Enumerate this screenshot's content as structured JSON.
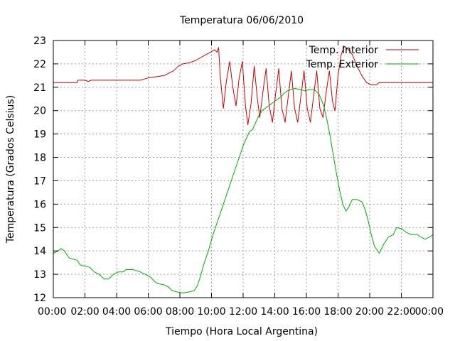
{
  "colors": {
    "interior": "#cc0000",
    "exterior": "#00aa00",
    "grid": "#a0a0a0",
    "frame": "#000000"
  },
  "chart_data": {
    "type": "line",
    "title": "Temperatura 06/06/2010",
    "xlabel": "Tiempo (Hora Local Argentina)",
    "ylabel": "Temperatura (Grados Celsius)",
    "xlim": [
      0,
      24
    ],
    "ylim": [
      12,
      23
    ],
    "grid": true,
    "legend_position": "top-right",
    "x_ticks": [
      {
        "value": 0,
        "label": "00:00"
      },
      {
        "value": 2,
        "label": "02:00"
      },
      {
        "value": 4,
        "label": "04:00"
      },
      {
        "value": 6,
        "label": "06:00"
      },
      {
        "value": 8,
        "label": "08:00"
      },
      {
        "value": 10,
        "label": "10:00"
      },
      {
        "value": 12,
        "label": "12:00"
      },
      {
        "value": 14,
        "label": "14:00"
      },
      {
        "value": 16,
        "label": "16:00"
      },
      {
        "value": 18,
        "label": "18:00"
      },
      {
        "value": 20,
        "label": "20:00"
      },
      {
        "value": 22,
        "label": "22:00"
      },
      {
        "value": 24,
        "label": "00:00"
      }
    ],
    "y_ticks": [
      {
        "value": 12,
        "label": "12"
      },
      {
        "value": 13,
        "label": "13"
      },
      {
        "value": 14,
        "label": "14"
      },
      {
        "value": 15,
        "label": "15"
      },
      {
        "value": 16,
        "label": "16"
      },
      {
        "value": 17,
        "label": "17"
      },
      {
        "value": 18,
        "label": "18"
      },
      {
        "value": 19,
        "label": "19"
      },
      {
        "value": 20,
        "label": "20"
      },
      {
        "value": 21,
        "label": "21"
      },
      {
        "value": 22,
        "label": "22"
      },
      {
        "value": 23,
        "label": "23"
      }
    ],
    "series": [
      {
        "name": "Temp. Interior",
        "color_key": "interior",
        "points": [
          [
            0,
            21.2
          ],
          [
            1.5,
            21.2
          ],
          [
            1.55,
            21.3
          ],
          [
            2.0,
            21.3
          ],
          [
            2.2,
            21.25
          ],
          [
            2.4,
            21.3
          ],
          [
            3.0,
            21.3
          ],
          [
            3.5,
            21.3
          ],
          [
            4.0,
            21.3
          ],
          [
            4.5,
            21.3
          ],
          [
            5.0,
            21.3
          ],
          [
            5.5,
            21.3
          ],
          [
            6.0,
            21.4
          ],
          [
            6.5,
            21.45
          ],
          [
            7.0,
            21.5
          ],
          [
            7.3,
            21.6
          ],
          [
            7.6,
            21.7
          ],
          [
            7.9,
            21.9
          ],
          [
            8.2,
            22.0
          ],
          [
            8.6,
            22.05
          ],
          [
            9.0,
            22.15
          ],
          [
            9.4,
            22.3
          ],
          [
            9.8,
            22.45
          ],
          [
            10.2,
            22.6
          ],
          [
            10.35,
            22.5
          ],
          [
            10.45,
            22.7
          ],
          [
            10.55,
            21.5
          ],
          [
            10.75,
            20.1
          ],
          [
            10.95,
            21.3
          ],
          [
            11.15,
            22.1
          ],
          [
            11.35,
            21.0
          ],
          [
            11.55,
            20.2
          ],
          [
            11.75,
            21.4
          ],
          [
            11.95,
            22.1
          ],
          [
            12.15,
            20.2
          ],
          [
            12.3,
            19.4
          ],
          [
            12.5,
            20.3
          ],
          [
            12.7,
            21.9
          ],
          [
            12.9,
            20.5
          ],
          [
            13.05,
            19.7
          ],
          [
            13.25,
            20.8
          ],
          [
            13.45,
            21.8
          ],
          [
            13.65,
            20.2
          ],
          [
            13.85,
            19.5
          ],
          [
            14.05,
            20.7
          ],
          [
            14.25,
            21.8
          ],
          [
            14.45,
            20.1
          ],
          [
            14.65,
            19.5
          ],
          [
            14.85,
            20.6
          ],
          [
            15.05,
            21.7
          ],
          [
            15.25,
            20.1
          ],
          [
            15.45,
            19.5
          ],
          [
            15.65,
            20.6
          ],
          [
            15.85,
            21.7
          ],
          [
            16.05,
            20.1
          ],
          [
            16.25,
            19.5
          ],
          [
            16.45,
            20.6
          ],
          [
            16.65,
            21.7
          ],
          [
            16.85,
            20.1
          ],
          [
            17.05,
            19.7
          ],
          [
            17.25,
            20.8
          ],
          [
            17.45,
            21.7
          ],
          [
            17.65,
            20.4
          ],
          [
            17.8,
            20.0
          ],
          [
            18.0,
            21.5
          ],
          [
            18.2,
            22.4
          ],
          [
            18.4,
            22.75
          ],
          [
            18.6,
            22.65
          ],
          [
            18.9,
            22.4
          ],
          [
            19.2,
            21.9
          ],
          [
            19.5,
            21.5
          ],
          [
            19.8,
            21.2
          ],
          [
            20.1,
            21.1
          ],
          [
            20.4,
            21.1
          ],
          [
            20.6,
            21.2
          ],
          [
            24,
            21.2
          ]
        ]
      },
      {
        "name": "Temp. Exterior",
        "color_key": "exterior",
        "points": [
          [
            0,
            13.9
          ],
          [
            0.3,
            14.0
          ],
          [
            0.5,
            14.1
          ],
          [
            0.7,
            14.0
          ],
          [
            0.9,
            13.8
          ],
          [
            1.0,
            13.7
          ],
          [
            1.5,
            13.6
          ],
          [
            1.7,
            13.4
          ],
          [
            2.0,
            13.35
          ],
          [
            2.3,
            13.3
          ],
          [
            2.6,
            13.1
          ],
          [
            2.9,
            13.0
          ],
          [
            3.2,
            12.8
          ],
          [
            3.5,
            12.8
          ],
          [
            3.8,
            13.0
          ],
          [
            4.1,
            13.1
          ],
          [
            4.4,
            13.1
          ],
          [
            4.6,
            13.2
          ],
          [
            5.0,
            13.2
          ],
          [
            5.3,
            13.15
          ],
          [
            5.5,
            13.1
          ],
          [
            5.8,
            13.0
          ],
          [
            6.1,
            12.9
          ],
          [
            6.4,
            12.7
          ],
          [
            6.6,
            12.6
          ],
          [
            7.0,
            12.55
          ],
          [
            7.3,
            12.45
          ],
          [
            7.5,
            12.3
          ],
          [
            7.8,
            12.25
          ],
          [
            8.2,
            12.2
          ],
          [
            8.6,
            12.25
          ],
          [
            8.9,
            12.3
          ],
          [
            9.1,
            12.5
          ],
          [
            9.3,
            12.9
          ],
          [
            9.5,
            13.4
          ],
          [
            9.8,
            14.0
          ],
          [
            10.1,
            14.7
          ],
          [
            10.4,
            15.3
          ],
          [
            10.7,
            15.9
          ],
          [
            11.0,
            16.5
          ],
          [
            11.2,
            16.9
          ],
          [
            11.4,
            17.3
          ],
          [
            11.6,
            17.7
          ],
          [
            11.8,
            18.1
          ],
          [
            12.0,
            18.5
          ],
          [
            12.2,
            18.8
          ],
          [
            12.4,
            19.1
          ],
          [
            12.6,
            19.2
          ],
          [
            12.8,
            19.5
          ],
          [
            13.0,
            19.8
          ],
          [
            13.2,
            20.0
          ],
          [
            13.4,
            20.1
          ],
          [
            13.6,
            20.2
          ],
          [
            13.8,
            20.3
          ],
          [
            14.0,
            20.4
          ],
          [
            14.2,
            20.5
          ],
          [
            14.4,
            20.6
          ],
          [
            14.6,
            20.75
          ],
          [
            14.8,
            20.85
          ],
          [
            15.0,
            20.9
          ],
          [
            15.3,
            20.95
          ],
          [
            15.6,
            20.9
          ],
          [
            15.9,
            20.85
          ],
          [
            16.2,
            20.9
          ],
          [
            16.5,
            20.9
          ],
          [
            16.8,
            20.7
          ],
          [
            17.1,
            20.2
          ],
          [
            17.3,
            19.6
          ],
          [
            17.5,
            18.9
          ],
          [
            17.7,
            18.1
          ],
          [
            17.9,
            17.3
          ],
          [
            18.1,
            16.6
          ],
          [
            18.3,
            16.0
          ],
          [
            18.5,
            15.7
          ],
          [
            18.7,
            15.9
          ],
          [
            18.9,
            16.2
          ],
          [
            19.2,
            16.2
          ],
          [
            19.5,
            16.1
          ],
          [
            19.7,
            15.8
          ],
          [
            19.9,
            15.3
          ],
          [
            20.1,
            14.7
          ],
          [
            20.3,
            14.2
          ],
          [
            20.6,
            13.9
          ],
          [
            20.9,
            14.3
          ],
          [
            21.2,
            14.6
          ],
          [
            21.5,
            14.7
          ],
          [
            21.7,
            15.0
          ],
          [
            22.0,
            14.95
          ],
          [
            22.3,
            14.8
          ],
          [
            22.6,
            14.7
          ],
          [
            23.0,
            14.7
          ],
          [
            23.2,
            14.6
          ],
          [
            23.5,
            14.5
          ],
          [
            23.8,
            14.6
          ],
          [
            24.0,
            14.7
          ]
        ]
      }
    ]
  }
}
